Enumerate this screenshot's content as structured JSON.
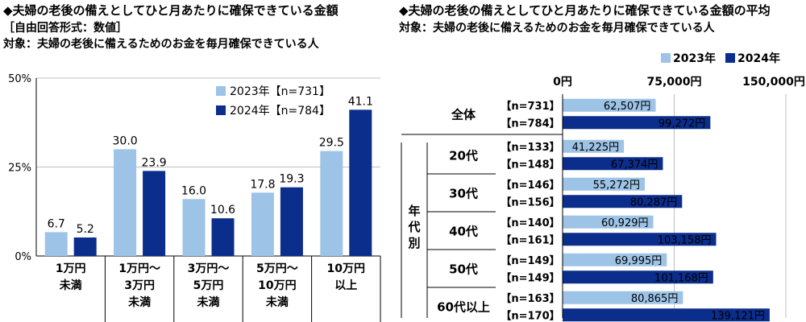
{
  "left_header": {
    "title": "◆夫婦の老後の備えとしてひと月あたりに確保できている金額",
    "format": "［自由回答形式：数値］",
    "subject": "対象：夫婦の老後に備えるためのお金を毎月確保できている人"
  },
  "right_header": {
    "title": "◆夫婦の老後の備えとしてひと月あたりに確保できている金額の平均",
    "subject": "対象：夫婦の老後に備えるためのお金を毎月確保できている人"
  },
  "colors": {
    "s2023": "#9dc3e6",
    "s2024": "#0b2d8c",
    "grid": "#bfbfbf"
  },
  "chart_data": [
    {
      "type": "bar",
      "categories": [
        [
          "1万円",
          "未満"
        ],
        [
          "1万円～",
          "3万円",
          "未満"
        ],
        [
          "3万円～",
          "5万円",
          "未満"
        ],
        [
          "5万円～",
          "10万円",
          "未満"
        ],
        [
          "10万円",
          "以上"
        ]
      ],
      "series": [
        {
          "name": "2023年【n=731】",
          "values": [
            6.7,
            30.0,
            16.0,
            17.8,
            29.5
          ],
          "labels": [
            "6.7",
            "30.0",
            "16.0",
            "17.8",
            "29.5"
          ]
        },
        {
          "name": "2024年【n=784】",
          "values": [
            5.2,
            23.9,
            10.6,
            19.3,
            41.1
          ],
          "labels": [
            "5.2",
            "23.9",
            "10.6",
            "19.3",
            "41.1"
          ]
        }
      ],
      "yticks": [
        "0%",
        "25%",
        "50%"
      ],
      "ylim": [
        0,
        50
      ],
      "legend": "top-right"
    },
    {
      "type": "bar",
      "orientation": "horizontal",
      "legend_items": [
        "2023年",
        "2024年"
      ],
      "xticks": [
        "0円",
        "75,000円",
        "150,000円"
      ],
      "xlim": [
        0,
        150000
      ],
      "side_label": "年代別",
      "groups": [
        {
          "label": "全体",
          "rows": [
            {
              "series": "2023年",
              "n": "【n=731】",
              "value": 62507,
              "label": "62,507円"
            },
            {
              "series": "2024年",
              "n": "【n=784】",
              "value": 99272,
              "label": "99,272円"
            }
          ]
        },
        {
          "label": "20代",
          "rows": [
            {
              "series": "2023年",
              "n": "【n=133】",
              "value": 41225,
              "label": "41,225円"
            },
            {
              "series": "2024年",
              "n": "【n=148】",
              "value": 67374,
              "label": "67,374円"
            }
          ]
        },
        {
          "label": "30代",
          "rows": [
            {
              "series": "2023年",
              "n": "【n=146】",
              "value": 55272,
              "label": "55,272円"
            },
            {
              "series": "2024年",
              "n": "【n=156】",
              "value": 80287,
              "label": "80,287円"
            }
          ]
        },
        {
          "label": "40代",
          "rows": [
            {
              "series": "2023年",
              "n": "【n=140】",
              "value": 60929,
              "label": "60,929円"
            },
            {
              "series": "2024年",
              "n": "【n=161】",
              "value": 103158,
              "label": "103,158円"
            }
          ]
        },
        {
          "label": "50代",
          "rows": [
            {
              "series": "2023年",
              "n": "【n=149】",
              "value": 69995,
              "label": "69,995円"
            },
            {
              "series": "2024年",
              "n": "【n=149】",
              "value": 101168,
              "label": "101,168円"
            }
          ]
        },
        {
          "label": "60代以上",
          "rows": [
            {
              "series": "2023年",
              "n": "【n=163】",
              "value": 80865,
              "label": "80,865円"
            },
            {
              "series": "2024年",
              "n": "【n=170】",
              "value": 139121,
              "label": "139,121円"
            }
          ]
        }
      ]
    }
  ]
}
